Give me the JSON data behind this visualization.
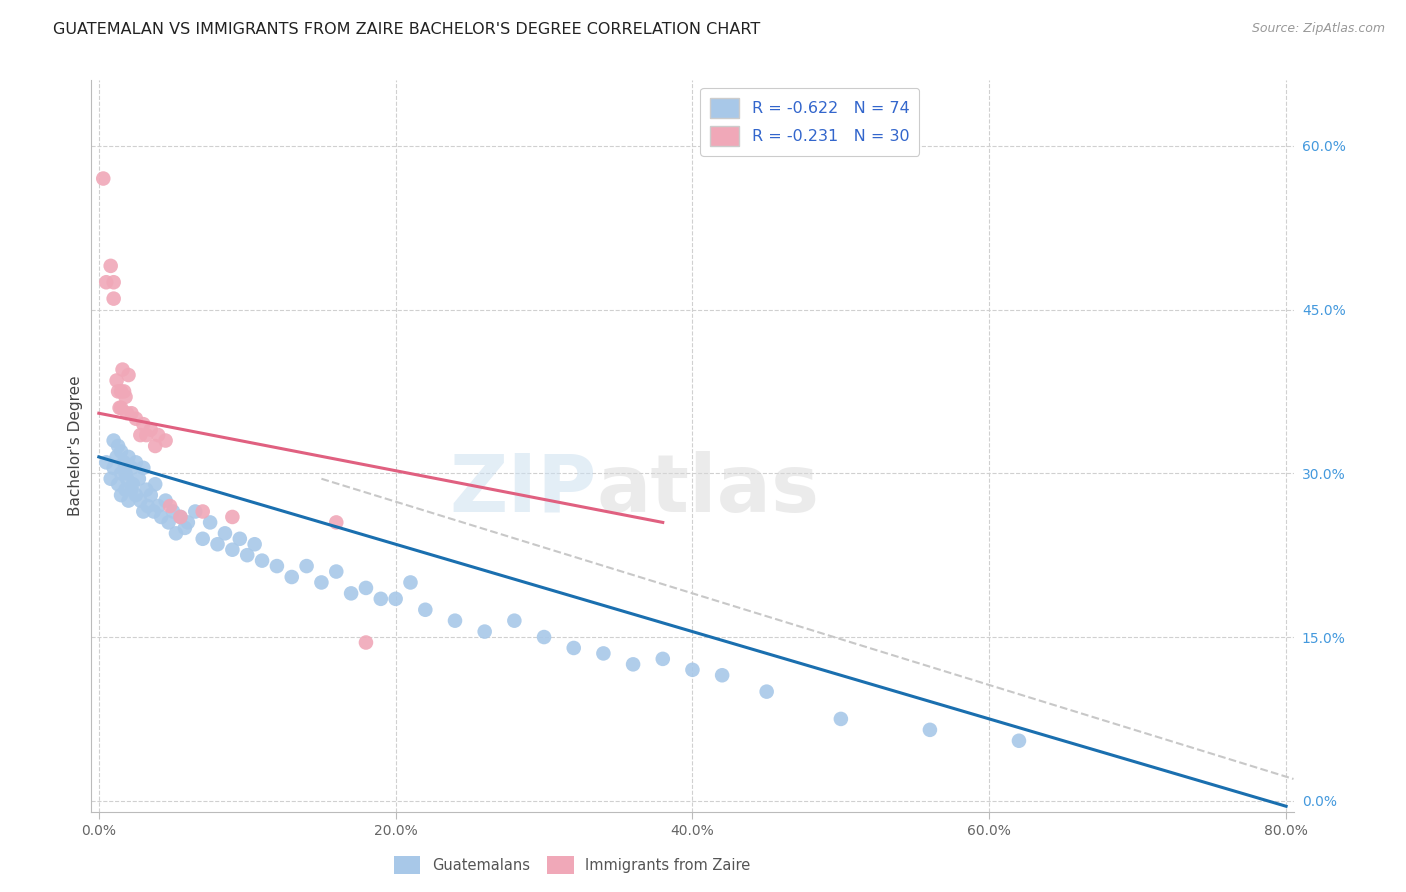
{
  "title": "GUATEMALAN VS IMMIGRANTS FROM ZAIRE BACHELOR'S DEGREE CORRELATION CHART",
  "source": "Source: ZipAtlas.com",
  "ylabel": "Bachelor's Degree",
  "watermark_zip": "ZIP",
  "watermark_atlas": "atlas",
  "legend_r1": "R = -0.622",
  "legend_n1": "N = 74",
  "legend_r2": "R = -0.231",
  "legend_n2": "N = 30",
  "guatemalan_color": "#a8c8e8",
  "zaire_color": "#f0a8b8",
  "blue_line_color": "#1a6faf",
  "pink_line_color": "#e06080",
  "dashed_line_color": "#c8c8c8",
  "xlim": [
    -0.005,
    0.805
  ],
  "ylim": [
    -0.01,
    0.66
  ],
  "xticks": [
    0.0,
    0.2,
    0.4,
    0.6,
    0.8
  ],
  "yticks": [
    0.0,
    0.15,
    0.3,
    0.45,
    0.6
  ],
  "ytick_labels_right": [
    "0.0%",
    "15.0%",
    "30.0%",
    "45.0%",
    "60.0%"
  ],
  "guatemalan_x": [
    0.005,
    0.008,
    0.01,
    0.01,
    0.012,
    0.013,
    0.013,
    0.015,
    0.015,
    0.015,
    0.017,
    0.018,
    0.018,
    0.019,
    0.02,
    0.02,
    0.022,
    0.022,
    0.023,
    0.025,
    0.025,
    0.027,
    0.028,
    0.03,
    0.03,
    0.032,
    0.033,
    0.035,
    0.037,
    0.038,
    0.04,
    0.042,
    0.045,
    0.047,
    0.05,
    0.052,
    0.055,
    0.058,
    0.06,
    0.065,
    0.07,
    0.075,
    0.08,
    0.085,
    0.09,
    0.095,
    0.1,
    0.105,
    0.11,
    0.12,
    0.13,
    0.14,
    0.15,
    0.16,
    0.17,
    0.18,
    0.19,
    0.2,
    0.21,
    0.22,
    0.24,
    0.26,
    0.28,
    0.3,
    0.32,
    0.34,
    0.36,
    0.38,
    0.4,
    0.42,
    0.45,
    0.5,
    0.56,
    0.62
  ],
  "guatemalan_y": [
    0.31,
    0.295,
    0.33,
    0.305,
    0.315,
    0.325,
    0.29,
    0.28,
    0.32,
    0.3,
    0.31,
    0.285,
    0.3,
    0.295,
    0.315,
    0.275,
    0.305,
    0.285,
    0.29,
    0.31,
    0.28,
    0.295,
    0.275,
    0.305,
    0.265,
    0.285,
    0.27,
    0.28,
    0.265,
    0.29,
    0.27,
    0.26,
    0.275,
    0.255,
    0.265,
    0.245,
    0.26,
    0.25,
    0.255,
    0.265,
    0.24,
    0.255,
    0.235,
    0.245,
    0.23,
    0.24,
    0.225,
    0.235,
    0.22,
    0.215,
    0.205,
    0.215,
    0.2,
    0.21,
    0.19,
    0.195,
    0.185,
    0.185,
    0.2,
    0.175,
    0.165,
    0.155,
    0.165,
    0.15,
    0.14,
    0.135,
    0.125,
    0.13,
    0.12,
    0.115,
    0.1,
    0.075,
    0.065,
    0.055
  ],
  "zaire_x": [
    0.003,
    0.005,
    0.008,
    0.01,
    0.01,
    0.012,
    0.013,
    0.014,
    0.015,
    0.015,
    0.016,
    0.017,
    0.018,
    0.019,
    0.02,
    0.022,
    0.025,
    0.028,
    0.03,
    0.032,
    0.035,
    0.038,
    0.04,
    0.045,
    0.048,
    0.055,
    0.07,
    0.09,
    0.16,
    0.18
  ],
  "zaire_y": [
    0.57,
    0.475,
    0.49,
    0.475,
    0.46,
    0.385,
    0.375,
    0.36,
    0.375,
    0.36,
    0.395,
    0.375,
    0.37,
    0.355,
    0.39,
    0.355,
    0.35,
    0.335,
    0.345,
    0.335,
    0.34,
    0.325,
    0.335,
    0.33,
    0.27,
    0.26,
    0.265,
    0.26,
    0.255,
    0.145
  ],
  "blue_line_x": [
    0.0,
    0.8
  ],
  "blue_line_y": [
    0.315,
    -0.005
  ],
  "pink_line_x": [
    0.0,
    0.38
  ],
  "pink_line_y": [
    0.355,
    0.255
  ],
  "dashed_line_x": [
    0.15,
    0.805
  ],
  "dashed_line_y": [
    0.295,
    0.02
  ],
  "background_color": "#ffffff",
  "grid_color": "#d0d0d0",
  "right_label_color": "#4499dd",
  "legend_text_color": "#3366cc",
  "title_color": "#222222",
  "source_color": "#999999",
  "ylabel_color": "#444444",
  "xtick_color": "#666666",
  "spine_color": "#bbbbbb"
}
